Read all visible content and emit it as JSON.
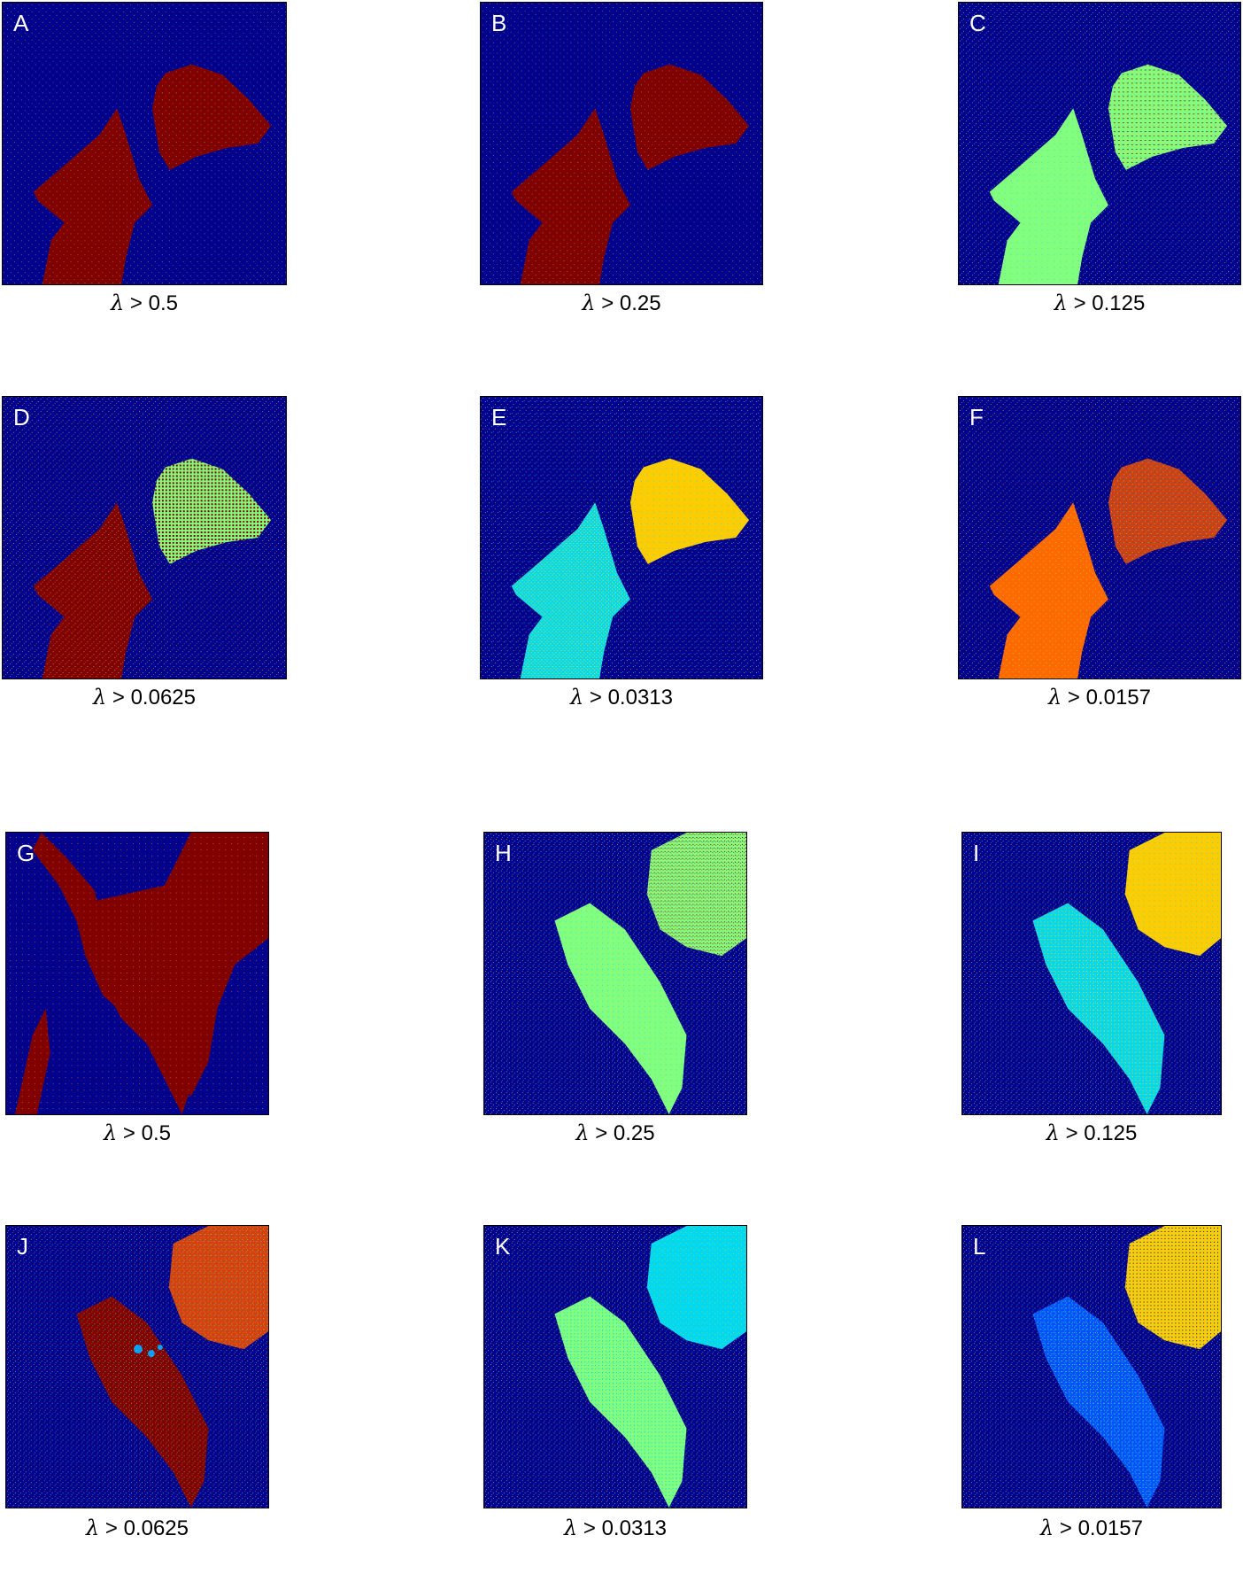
{
  "colors": {
    "background": "#00008f",
    "dark_red": "#800000",
    "green": "#80ff80",
    "yellow": "#ffcc00",
    "cyan": "#00d8f0",
    "orange": "#ff6a00",
    "red_orange": "#d04010",
    "blue": "#0050ff"
  },
  "panels": [
    {
      "letter": "A",
      "symbol": "λ",
      "condition": "> 0.5"
    },
    {
      "letter": "B",
      "symbol": "λ",
      "condition": "> 0.25"
    },
    {
      "letter": "C",
      "symbol": "λ",
      "condition": "> 0.125"
    },
    {
      "letter": "D",
      "symbol": "λ",
      "condition": "> 0.0625"
    },
    {
      "letter": "E",
      "symbol": "λ",
      "condition": "> 0.0313"
    },
    {
      "letter": "F",
      "symbol": "λ",
      "condition": "> 0.0157"
    },
    {
      "letter": "G",
      "symbol": "λ",
      "condition": "> 0.5"
    },
    {
      "letter": "H",
      "symbol": "λ",
      "condition": "> 0.25"
    },
    {
      "letter": "I",
      "symbol": "λ",
      "condition": "> 0.125"
    },
    {
      "letter": "J",
      "symbol": "λ",
      "condition": "> 0.0625"
    },
    {
      "letter": "K",
      "symbol": "λ",
      "condition": "> 0.0313"
    },
    {
      "letter": "L",
      "symbol": "λ",
      "condition": "> 0.0157"
    }
  ]
}
